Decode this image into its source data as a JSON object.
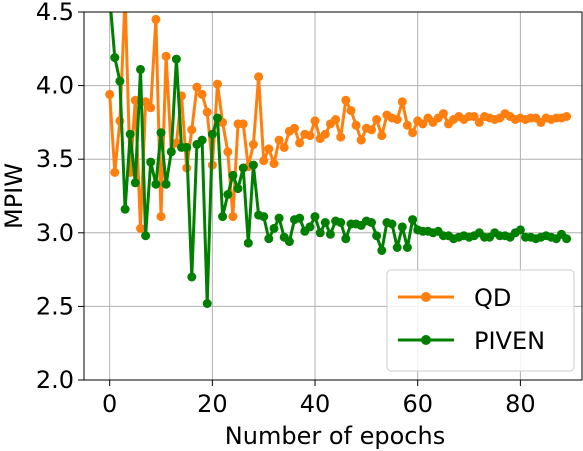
{
  "chart_data": {
    "type": "line",
    "title": "",
    "xlabel": "Number of epochs",
    "ylabel": "MPIW",
    "xlim": [
      -5,
      92
    ],
    "ylim": [
      2.0,
      4.5
    ],
    "xticks": [
      0,
      20,
      40,
      60,
      80
    ],
    "yticks": [
      2.0,
      2.5,
      3.0,
      3.5,
      4.0,
      4.5
    ],
    "xtick_labels": [
      "0",
      "20",
      "40",
      "60",
      "80"
    ],
    "ytick_labels": [
      "2.0",
      "2.5",
      "3.0",
      "3.5",
      "4.0",
      "4.5"
    ],
    "grid": true,
    "legend_position": "bottom-right",
    "x": [
      0,
      1,
      2,
      3,
      4,
      5,
      6,
      7,
      8,
      9,
      10,
      11,
      12,
      13,
      14,
      15,
      16,
      17,
      18,
      19,
      20,
      21,
      22,
      23,
      24,
      25,
      26,
      27,
      28,
      29,
      30,
      31,
      32,
      33,
      34,
      35,
      36,
      37,
      38,
      39,
      40,
      41,
      42,
      43,
      44,
      45,
      46,
      47,
      48,
      49,
      50,
      51,
      52,
      53,
      54,
      55,
      56,
      57,
      58,
      59,
      60,
      61,
      62,
      63,
      64,
      65,
      66,
      67,
      68,
      69,
      70,
      71,
      72,
      73,
      74,
      75,
      76,
      77,
      78,
      79,
      80,
      81,
      82,
      83,
      84,
      85,
      86,
      87,
      88,
      89
    ],
    "series": [
      {
        "name": "QD",
        "color": "#ff7f0e",
        "values": [
          3.94,
          3.41,
          3.76,
          4.6,
          3.41,
          3.9,
          3.03,
          3.89,
          3.85,
          4.45,
          3.11,
          4.2,
          3.55,
          3.61,
          3.93,
          3.44,
          3.7,
          3.99,
          3.94,
          3.82,
          3.46,
          4.01,
          3.75,
          3.55,
          3.11,
          3.74,
          3.74,
          3.45,
          3.6,
          4.06,
          3.49,
          3.57,
          3.47,
          3.63,
          3.58,
          3.69,
          3.71,
          3.61,
          3.67,
          3.66,
          3.76,
          3.64,
          3.67,
          3.74,
          3.77,
          3.65,
          3.9,
          3.83,
          3.73,
          3.63,
          3.71,
          3.7,
          3.77,
          3.66,
          3.8,
          3.78,
          3.77,
          3.89,
          3.73,
          3.68,
          3.76,
          3.74,
          3.78,
          3.75,
          3.78,
          3.81,
          3.74,
          3.77,
          3.79,
          3.77,
          3.79,
          3.79,
          3.75,
          3.79,
          3.78,
          3.77,
          3.78,
          3.81,
          3.79,
          3.77,
          3.78,
          3.77,
          3.78,
          3.78,
          3.75,
          3.78,
          3.77,
          3.78,
          3.78,
          3.79
        ]
      },
      {
        "name": "PIVEN",
        "color": "#007f00",
        "values": [
          4.6,
          4.19,
          4.03,
          3.16,
          3.67,
          3.34,
          4.11,
          2.98,
          3.48,
          3.33,
          3.68,
          3.33,
          3.55,
          4.18,
          3.58,
          3.58,
          2.7,
          3.6,
          3.63,
          2.52,
          3.67,
          3.78,
          3.11,
          3.26,
          3.39,
          3.3,
          3.44,
          2.93,
          3.46,
          3.12,
          3.11,
          2.96,
          3.03,
          3.1,
          2.97,
          2.94,
          3.09,
          3.1,
          3.01,
          3.04,
          3.11,
          3.0,
          3.07,
          2.99,
          3.08,
          3.07,
          2.96,
          3.06,
          3.06,
          3.05,
          3.08,
          3.07,
          2.98,
          2.88,
          3.07,
          3.06,
          2.9,
          3.04,
          2.9,
          3.09,
          3.02,
          3.01,
          3.01,
          3.0,
          3.01,
          2.98,
          2.98,
          2.96,
          2.97,
          2.98,
          2.97,
          2.98,
          3.0,
          2.97,
          2.97,
          3.0,
          2.98,
          2.98,
          2.97,
          3.0,
          3.02,
          2.97,
          2.97,
          2.96,
          2.97,
          2.98,
          2.97,
          2.96,
          2.99,
          2.96
        ]
      }
    ]
  }
}
